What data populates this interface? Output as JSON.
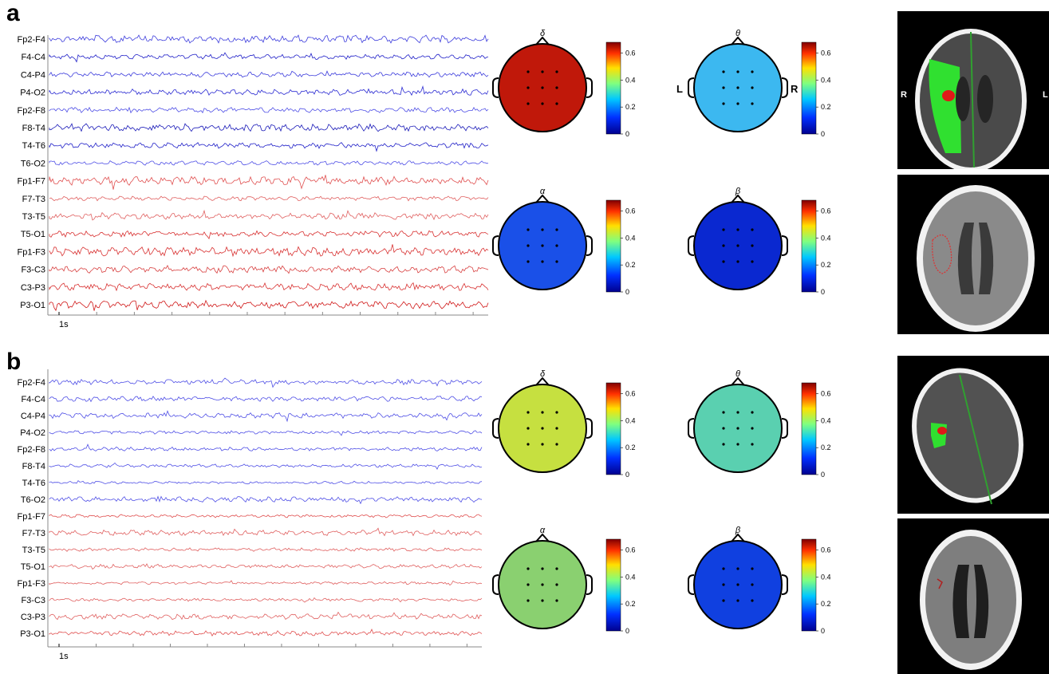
{
  "panels": [
    {
      "label": "a",
      "eeg": {
        "channels": [
          "Fp2-F4",
          "F4-C4",
          "C4-P4",
          "P4-O2",
          "Fp2-F8",
          "F8-T4",
          "T4-T6",
          "T6-O2",
          "Fp1-F7",
          "F7-T3",
          "T3-T5",
          "T5-O1",
          "Fp1-F3",
          "F3-C3",
          "C3-P3",
          "P3-O1"
        ],
        "channel_colors": [
          "#3c3cdc",
          "#2020c8",
          "#3c3cdc",
          "#2a2ad2",
          "#5050e6",
          "#1a1ab8",
          "#2020c8",
          "#5050e6",
          "#e05050",
          "#e06060",
          "#e06060",
          "#d83030",
          "#d83030",
          "#d84040",
          "#d83030",
          "#d01818"
        ],
        "scale_label": "1s"
      },
      "topomaps": [
        {
          "band": "δ",
          "fill": "#c0180a"
        },
        {
          "band": "θ",
          "fill": "#3cb8f0",
          "left_label": "L",
          "right_label": "R"
        },
        {
          "band": "α",
          "fill": "#1a50e8"
        },
        {
          "band": "β",
          "fill": "#0a28d0"
        }
      ],
      "colorbar": {
        "ticks": [
          "0.6",
          "0.4",
          "0.2",
          "0"
        ]
      },
      "ct": {
        "top_left_label": "R",
        "top_right_label": "L"
      }
    },
    {
      "label": "b",
      "eeg": {
        "channels": [
          "Fp2-F4",
          "F4-C4",
          "C4-P4",
          "P4-O2",
          "Fp2-F8",
          "F8-T4",
          "T4-T6",
          "T6-O2",
          "Fp1-F7",
          "F7-T3",
          "T3-T5",
          "T5-O1",
          "Fp1-F3",
          "F3-C3",
          "C3-P3",
          "P3-O1"
        ],
        "channel_colors": [
          "#5050e6",
          "#5050e6",
          "#5050e6",
          "#5050e6",
          "#5050e6",
          "#5050e6",
          "#5050e6",
          "#5050e6",
          "#e05050",
          "#e06060",
          "#e06060",
          "#e06060",
          "#e06060",
          "#e06060",
          "#e06060",
          "#e05050"
        ],
        "scale_label": "1s"
      },
      "topomaps": [
        {
          "band": "δ",
          "fill": "#c6e040"
        },
        {
          "band": "θ",
          "fill": "#5ad0b0"
        },
        {
          "band": "α",
          "fill": "#8ad070"
        },
        {
          "band": "β",
          "fill": "#1040e0"
        }
      ],
      "colorbar": {
        "ticks": [
          "0.6",
          "0.4",
          "0.2",
          "0"
        ]
      },
      "ct": {}
    }
  ]
}
